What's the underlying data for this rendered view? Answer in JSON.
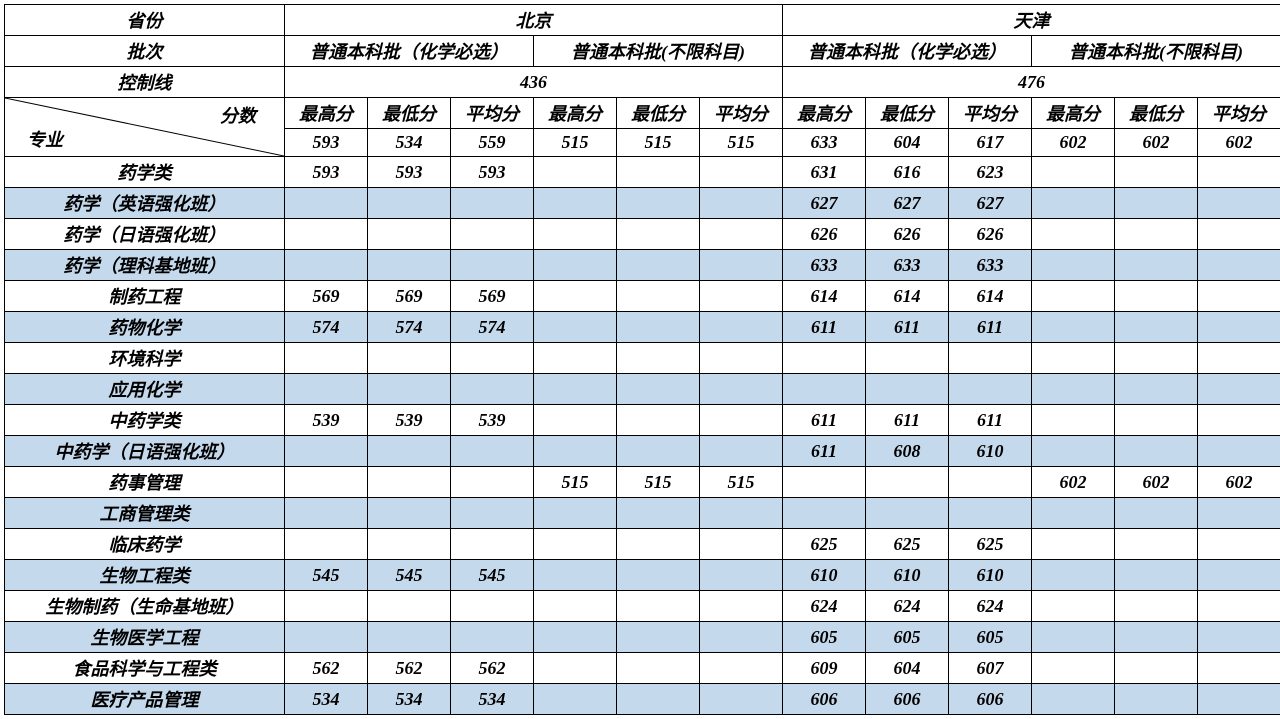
{
  "headers": {
    "province": "省份",
    "batch": "批次",
    "control_line": "控制线",
    "scores_label": "分数",
    "major_label": "专业",
    "provinces": [
      "北京",
      "天津"
    ],
    "batches": [
      "普通本科批（化学必选）",
      "普通本科批(不限科目)",
      "普通本科批（化学必选）",
      "普通本科批(不限科目)"
    ],
    "control_values": [
      "436",
      "476"
    ],
    "score_labels": [
      "最高分",
      "最低分",
      "平均分",
      "最高分",
      "最低分",
      "平均分",
      "最高分",
      "最低分",
      "平均分",
      "最高分",
      "最低分",
      "平均分"
    ],
    "overall_scores": [
      "593",
      "534",
      "559",
      "515",
      "515",
      "515",
      "633",
      "604",
      "617",
      "602",
      "602",
      "602"
    ]
  },
  "majors": [
    {
      "name": "药学类",
      "band": false,
      "v": [
        "593",
        "593",
        "593",
        "",
        "",
        "",
        "631",
        "616",
        "623",
        "",
        "",
        ""
      ]
    },
    {
      "name": "药学（英语强化班）",
      "band": true,
      "v": [
        "",
        "",
        "",
        "",
        "",
        "",
        "627",
        "627",
        "627",
        "",
        "",
        ""
      ]
    },
    {
      "name": "药学（日语强化班）",
      "band": false,
      "v": [
        "",
        "",
        "",
        "",
        "",
        "",
        "626",
        "626",
        "626",
        "",
        "",
        ""
      ]
    },
    {
      "name": "药学（理科基地班）",
      "band": true,
      "v": [
        "",
        "",
        "",
        "",
        "",
        "",
        "633",
        "633",
        "633",
        "",
        "",
        ""
      ]
    },
    {
      "name": "制药工程",
      "band": false,
      "v": [
        "569",
        "569",
        "569",
        "",
        "",
        "",
        "614",
        "614",
        "614",
        "",
        "",
        ""
      ]
    },
    {
      "name": "药物化学",
      "band": true,
      "v": [
        "574",
        "574",
        "574",
        "",
        "",
        "",
        "611",
        "611",
        "611",
        "",
        "",
        ""
      ]
    },
    {
      "name": "环境科学",
      "band": false,
      "v": [
        "",
        "",
        "",
        "",
        "",
        "",
        "",
        "",
        "",
        "",
        "",
        ""
      ]
    },
    {
      "name": "应用化学",
      "band": true,
      "v": [
        "",
        "",
        "",
        "",
        "",
        "",
        "",
        "",
        "",
        "",
        "",
        ""
      ]
    },
    {
      "name": "中药学类",
      "band": false,
      "v": [
        "539",
        "539",
        "539",
        "",
        "",
        "",
        "611",
        "611",
        "611",
        "",
        "",
        ""
      ]
    },
    {
      "name": "中药学（日语强化班）",
      "band": true,
      "v": [
        "",
        "",
        "",
        "",
        "",
        "",
        "611",
        "608",
        "610",
        "",
        "",
        ""
      ]
    },
    {
      "name": "药事管理",
      "band": false,
      "v": [
        "",
        "",
        "",
        "515",
        "515",
        "515",
        "",
        "",
        "",
        "602",
        "602",
        "602"
      ]
    },
    {
      "name": "工商管理类",
      "band": true,
      "v": [
        "",
        "",
        "",
        "",
        "",
        "",
        "",
        "",
        "",
        "",
        "",
        ""
      ]
    },
    {
      "name": "临床药学",
      "band": false,
      "v": [
        "",
        "",
        "",
        "",
        "",
        "",
        "625",
        "625",
        "625",
        "",
        "",
        ""
      ]
    },
    {
      "name": "生物工程类",
      "band": true,
      "v": [
        "545",
        "545",
        "545",
        "",
        "",
        "",
        "610",
        "610",
        "610",
        "",
        "",
        ""
      ]
    },
    {
      "name": "生物制药（生命基地班）",
      "band": false,
      "v": [
        "",
        "",
        "",
        "",
        "",
        "",
        "624",
        "624",
        "624",
        "",
        "",
        ""
      ]
    },
    {
      "name": "生物医学工程",
      "band": true,
      "v": [
        "",
        "",
        "",
        "",
        "",
        "",
        "605",
        "605",
        "605",
        "",
        "",
        ""
      ]
    },
    {
      "name": "食品科学与工程类",
      "band": false,
      "v": [
        "562",
        "562",
        "562",
        "",
        "",
        "",
        "609",
        "604",
        "607",
        "",
        "",
        ""
      ]
    },
    {
      "name": "医疗产品管理",
      "band": true,
      "v": [
        "534",
        "534",
        "534",
        "",
        "",
        "",
        "606",
        "606",
        "606",
        "",
        "",
        ""
      ]
    }
  ],
  "colors": {
    "band": "#c5d9ed",
    "plain": "#ffffff",
    "border": "#000000"
  }
}
